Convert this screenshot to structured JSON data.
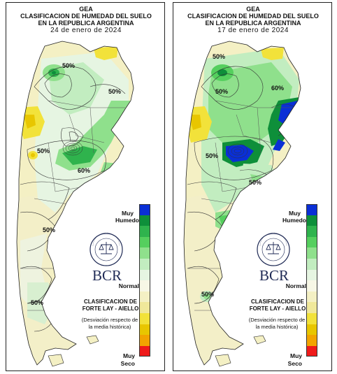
{
  "panels": [
    {
      "title_org": "GEA",
      "title_line1": "CLASIFICACION DE HUMEDAD DEL SUELO",
      "title_line2": "EN LA REPUBLICA ARGENTINA",
      "date": "24 de enero de 2024",
      "contour_labels": [
        "50%",
        "50%",
        "50%",
        "60%",
        "50%",
        "50%"
      ]
    },
    {
      "title_org": "GEA",
      "title_line1": "CLASIFICACION DE HUMEDAD DEL SUELO",
      "title_line2": "EN LA REPUBLICA ARGENTINA",
      "date": "17 de enero de 2024",
      "contour_labels": [
        "50%",
        "50%",
        "50%",
        "60%",
        "50%",
        "50%"
      ]
    }
  ],
  "legend": {
    "wet_label_1": "Muy",
    "wet_label_2": "Humedo",
    "normal_label": "Normal",
    "dry_label_1": "Muy",
    "dry_label_2": "Seco",
    "classification_1": "CLASIFICACION DE",
    "classification_2": "FORTE LAY - AIELLO",
    "description_1": "(Desviación respecto de",
    "description_2": "la media histórica)",
    "colors": [
      "#0a2fd6",
      "#0e8f3a",
      "#2fb34d",
      "#55cf5e",
      "#8fe08c",
      "#c2edc0",
      "#e6f5e2",
      "#f7f7e6",
      "#f4f0c4",
      "#f0e89a",
      "#f2e23a",
      "#e8c600",
      "#f2a400",
      "#ef1b1b"
    ]
  },
  "logo": {
    "text": "BCR",
    "seal_text": "BOLSA DE COMERCIO DE ROSARIO"
  },
  "colors": {
    "very_wet": "#0a2fd6",
    "wet_dark": "#0e8f3a",
    "wet": "#3dbb55",
    "wet_light": "#9be297",
    "normal": "#f7f7e6",
    "dry_light": "#f0e89a",
    "dry": "#e8c600",
    "very_dry": "#ef1b1b",
    "brand": "#1f2a55"
  }
}
